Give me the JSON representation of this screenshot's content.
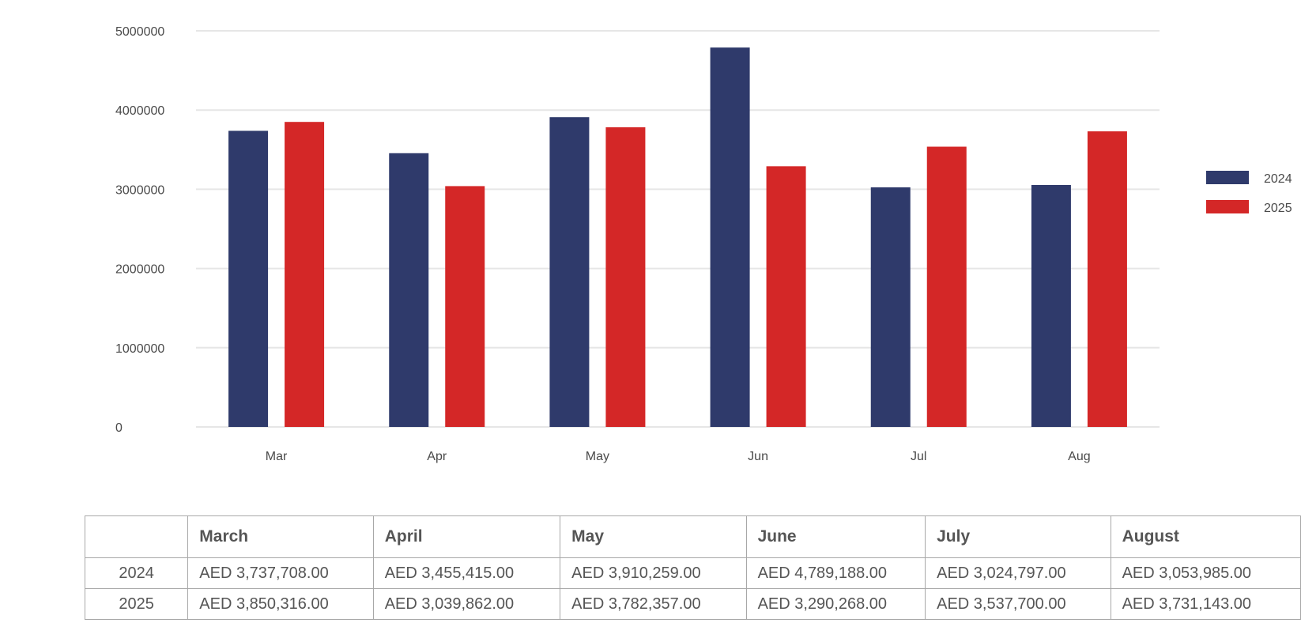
{
  "chart_data": {
    "type": "bar",
    "categories": [
      "Mar",
      "Apr",
      "May",
      "Jun",
      "Jul",
      "Aug"
    ],
    "series": [
      {
        "name": "2024",
        "color": "#2f3a6b",
        "values": [
          3737708,
          3455415,
          3910259,
          4789188,
          3024797,
          3053985
        ]
      },
      {
        "name": "2025",
        "color": "#d42727",
        "values": [
          3850316,
          3039862,
          3782357,
          3290268,
          3537700,
          3731143
        ]
      }
    ],
    "yticks": [
      "0",
      "1000000",
      "2000000",
      "3000000",
      "4000000",
      "5000000"
    ],
    "ylim": [
      0,
      5000000
    ],
    "grid": true,
    "legend_position": "right"
  },
  "table": {
    "headers": [
      "",
      "March",
      "April",
      "May",
      "June",
      "July",
      "August"
    ],
    "rows": [
      {
        "label": "2024",
        "cells": [
          "AED 3,737,708.00",
          "AED 3,455,415.00",
          "AED 3,910,259.00",
          "AED 4,789,188.00",
          "AED 3,024,797.00",
          "AED 3,053,985.00"
        ]
      },
      {
        "label": "2025",
        "cells": [
          "AED 3,850,316.00",
          "AED 3,039,862.00",
          "AED 3,782,357.00",
          "AED 3,290,268.00",
          "AED 3,537,700.00",
          "AED 3,731,143.00"
        ]
      }
    ]
  }
}
